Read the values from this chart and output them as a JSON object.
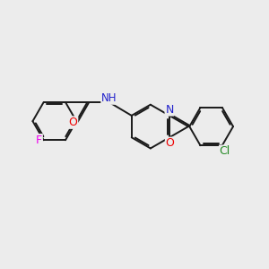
{
  "bg_color": "#ececec",
  "bond_color": "#1a1a1a",
  "bond_width": 1.4,
  "atom_colors": {
    "F": "#ee00ee",
    "O": "#ee0000",
    "N": "#2222cc",
    "Cl": "#228822",
    "C": "#1a1a1a",
    "H": "#1a1a1a"
  },
  "font_size": 8.5,
  "fig_size": [
    3.0,
    3.0
  ],
  "dpi": 100
}
